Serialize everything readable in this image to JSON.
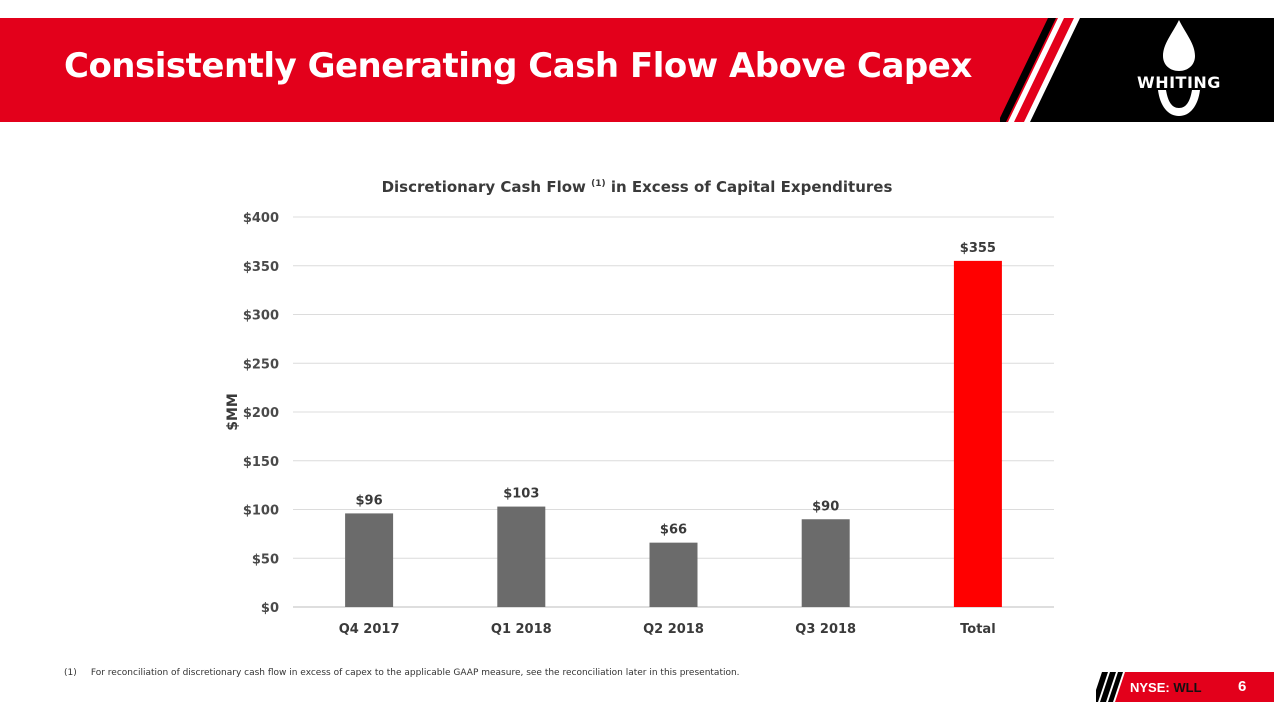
{
  "header": {
    "title": "Consistently Generating Cash Flow Above Capex",
    "logo_text": "WHITING"
  },
  "colors": {
    "brand_red": "#e3001b",
    "bar_gray": "#6b6b6b",
    "bar_highlight": "#ff0000",
    "black": "#000000"
  },
  "chart_data": {
    "type": "bar",
    "title": "Discretionary Cash Flow",
    "title_superscript": "(1)",
    "title_suffix": "in Excess of Capital Expenditures",
    "ylabel": "$MM",
    "xlabel": "",
    "categories": [
      "Q4 2017",
      "Q1 2018",
      "Q2 2018",
      "Q3 2018",
      "Total"
    ],
    "values": [
      96,
      103,
      66,
      90,
      355
    ],
    "value_labels": [
      "$96",
      "$103",
      "$66",
      "$90",
      "$355"
    ],
    "highlight_category": "Total",
    "ylim": [
      0,
      400
    ],
    "yticks": [
      0,
      50,
      100,
      150,
      200,
      250,
      300,
      350,
      400
    ],
    "ytick_labels": [
      "$0",
      "$50",
      "$100",
      "$150",
      "$200",
      "$250",
      "$300",
      "$350",
      "$400"
    ],
    "grid": true,
    "legend": "none"
  },
  "footnote": {
    "marker": "(1)",
    "text": "For reconciliation of discretionary cash flow in excess of capex to the applicable GAAP measure, see the reconciliation later in this presentation."
  },
  "footer": {
    "exchange": "NYSE:",
    "ticker": "WLL",
    "page_number": "6"
  }
}
